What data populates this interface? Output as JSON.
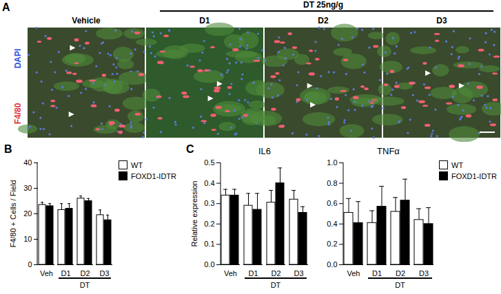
{
  "panel_a": {
    "panel": "A",
    "treatment": "DT 25ng/g",
    "stain_labels": [
      "DAPI",
      "F4/80"
    ],
    "image_titles": [
      "Vehicle",
      "D1",
      "D2",
      "D3"
    ]
  },
  "chart_data": [
    {
      "panel": "B",
      "type": "bar",
      "ylabel": "F4/80 + Cells / Field",
      "categories": [
        "Veh",
        "D1",
        "D2",
        "D3"
      ],
      "category_group": {
        "label": "DT",
        "categories": [
          "D1",
          "D2",
          "D3"
        ]
      },
      "series": [
        {
          "name": "WT",
          "color": "#ffffff",
          "values": [
            23.5,
            21.5,
            26,
            19.5
          ],
          "errors": [
            1,
            2.5,
            1,
            2
          ]
        },
        {
          "name": "FOXD1-IDTR",
          "color": "#000000",
          "values": [
            23,
            22,
            25,
            17.5
          ],
          "errors": [
            1,
            2,
            1,
            2
          ]
        }
      ],
      "ylim": [
        0,
        40
      ],
      "yticks": [
        0,
        10,
        20,
        30,
        40
      ],
      "legend": "right"
    },
    {
      "panel": "C",
      "type": "bar",
      "title": "IL6",
      "ylabel": "Relative expression",
      "categories": [
        "Veh",
        "D1",
        "D2",
        "D3"
      ],
      "category_group": {
        "label": "DT",
        "categories": [
          "D1",
          "D2",
          "D3"
        ]
      },
      "series": [
        {
          "name": "WT",
          "color": "#ffffff",
          "values": [
            0.34,
            0.29,
            0.305,
            0.32
          ],
          "errors": [
            0.03,
            0.06,
            0.06,
            0.045
          ]
        },
        {
          "name": "FOXD1-IDTR",
          "color": "#000000",
          "values": [
            0.34,
            0.27,
            0.4,
            0.255
          ],
          "errors": [
            0.03,
            0.08,
            0.075,
            0.03
          ]
        }
      ],
      "ylim": [
        0,
        0.5
      ],
      "yticks": [
        {
          "value": 0,
          "label": "0.0"
        },
        0.1,
        0.2,
        0.3,
        0.4,
        0.5
      ]
    },
    {
      "type": "bar",
      "title": "TNFα",
      "categories": [
        "Veh",
        "D1",
        "D2",
        "D3"
      ],
      "category_group": {
        "label": "DT",
        "categories": [
          "D1",
          "D2",
          "D3"
        ]
      },
      "series": [
        {
          "name": "WT",
          "color": "#ffffff",
          "values": [
            0.51,
            0.41,
            0.52,
            0.44
          ],
          "errors": [
            0.14,
            0.12,
            0.14,
            0.11
          ]
        },
        {
          "name": "FOXD1-IDTR",
          "color": "#000000",
          "values": [
            0.41,
            0.57,
            0.63,
            0.4
          ],
          "errors": [
            0.21,
            0.2,
            0.21,
            0.16
          ]
        }
      ],
      "ylim": [
        0,
        1
      ],
      "yticks": [
        {
          "value": 0,
          "label": "0.0"
        },
        0.2,
        0.4,
        0.6,
        0.8,
        {
          "value": 1,
          "label": "1.0"
        }
      ],
      "legend": "right"
    }
  ]
}
